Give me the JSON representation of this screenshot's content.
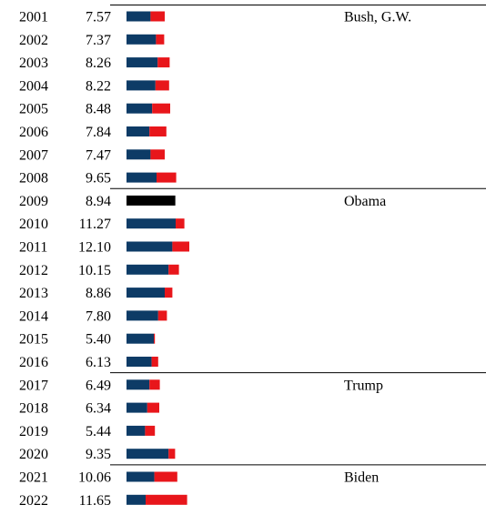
{
  "chart_data": {
    "type": "bar",
    "stacked": true,
    "colors": {
      "blue": "#0d3b66",
      "red": "#e8161b",
      "black": "#000000"
    },
    "rows": [
      {
        "year": "2001",
        "value": "7.57",
        "blue": 4.4,
        "red": 2.6,
        "black": 0,
        "president": "Bush, G.W."
      },
      {
        "year": "2002",
        "value": "7.37",
        "blue": 5.4,
        "red": 1.5,
        "black": 0,
        "president": ""
      },
      {
        "year": "2003",
        "value": "8.26",
        "blue": 5.7,
        "red": 2.2,
        "black": 0,
        "president": ""
      },
      {
        "year": "2004",
        "value": "8.22",
        "blue": 5.3,
        "red": 2.5,
        "black": 0,
        "president": ""
      },
      {
        "year": "2005",
        "value": "8.48",
        "blue": 4.7,
        "red": 3.3,
        "black": 0,
        "president": ""
      },
      {
        "year": "2006",
        "value": "7.84",
        "blue": 4.2,
        "red": 3.1,
        "black": 0,
        "president": ""
      },
      {
        "year": "2007",
        "value": "7.47",
        "blue": 4.4,
        "red": 2.6,
        "black": 0,
        "president": ""
      },
      {
        "year": "2008",
        "value": "9.65",
        "blue": 5.5,
        "red": 3.6,
        "black": 0,
        "president": ""
      },
      {
        "year": "2009",
        "value": "8.94",
        "blue": 0,
        "red": 0,
        "black": 8.94,
        "president": "Obama"
      },
      {
        "year": "2010",
        "value": "11.27",
        "blue": 9.0,
        "red": 1.6,
        "black": 0,
        "president": ""
      },
      {
        "year": "2011",
        "value": "12.10",
        "blue": 8.4,
        "red": 3.1,
        "black": 0,
        "president": ""
      },
      {
        "year": "2012",
        "value": "10.15",
        "blue": 7.7,
        "red": 1.9,
        "black": 0,
        "president": ""
      },
      {
        "year": "2013",
        "value": "8.86",
        "blue": 7.0,
        "red": 1.4,
        "black": 0,
        "president": ""
      },
      {
        "year": "2014",
        "value": "7.80",
        "blue": 5.8,
        "red": 1.6,
        "black": 0,
        "president": ""
      },
      {
        "year": "2015",
        "value": "5.40",
        "blue": 5.0,
        "red": 0.2,
        "black": 0,
        "president": ""
      },
      {
        "year": "2016",
        "value": "6.13",
        "blue": 4.6,
        "red": 1.2,
        "black": 0,
        "president": ""
      },
      {
        "year": "2017",
        "value": "6.49",
        "blue": 4.2,
        "red": 1.9,
        "black": 0,
        "president": "Trump"
      },
      {
        "year": "2018",
        "value": "6.34",
        "blue": 3.8,
        "red": 2.2,
        "black": 0,
        "president": ""
      },
      {
        "year": "2019",
        "value": "5.44",
        "blue": 3.4,
        "red": 1.8,
        "black": 0,
        "president": ""
      },
      {
        "year": "2020",
        "value": "9.35",
        "blue": 7.7,
        "red": 1.2,
        "black": 0,
        "president": ""
      },
      {
        "year": "2021",
        "value": "10.06",
        "blue": 5.1,
        "red": 4.2,
        "black": 0,
        "president": "Biden"
      },
      {
        "year": "2022",
        "value": "11.65",
        "blue": 3.5,
        "red": 7.6,
        "black": 0,
        "president": ""
      }
    ],
    "term_dividers_before": [
      "2009",
      "2017",
      "2021"
    ],
    "grid": false
  }
}
